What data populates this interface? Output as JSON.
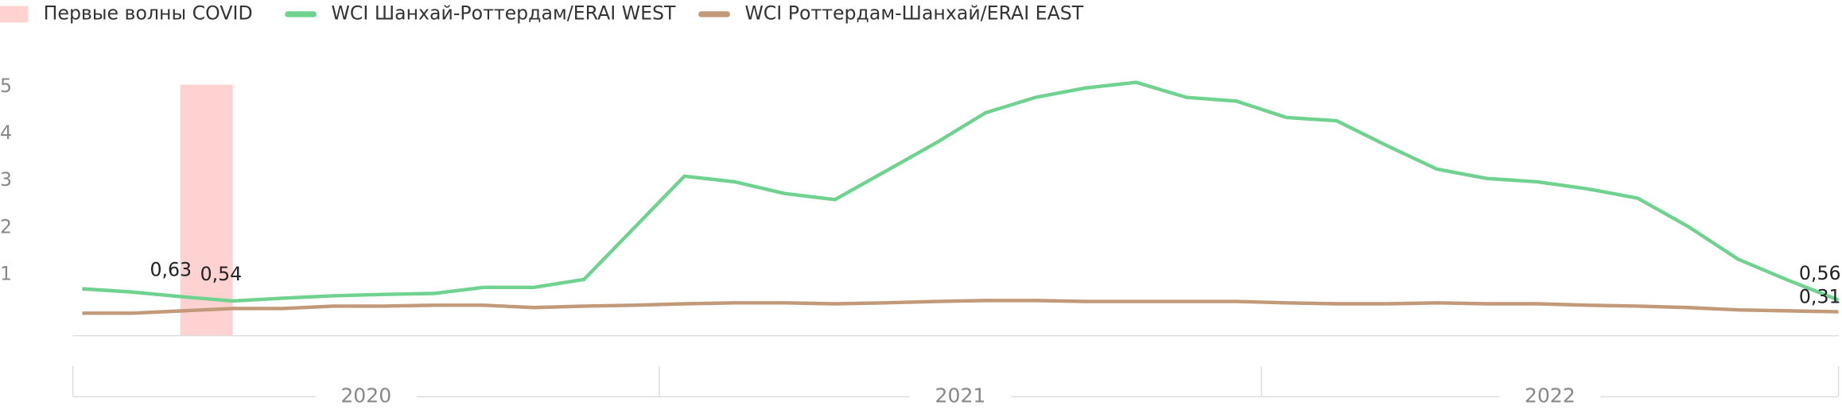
{
  "chart_data": {
    "type": "line",
    "categories": [
      null,
      null,
      null,
      null,
      null,
      null,
      null,
      null,
      null,
      null,
      null,
      null,
      null,
      null,
      null,
      null,
      null,
      null,
      null,
      null,
      null,
      null,
      null,
      null,
      null,
      null,
      null,
      null,
      null,
      null,
      null,
      null,
      null,
      null,
      null,
      null
    ],
    "year_groups": [
      "2020",
      "2021",
      "2022"
    ],
    "shaded_range": {
      "name": "Первые волны COVID",
      "color": "#ffd2d2",
      "from": 2,
      "to": 3
    },
    "series": [
      {
        "name": "WCI Шанхай-Роттердам/ERAI WEST",
        "color": "#6fd38f",
        "values": [
          0.8,
          0.73,
          0.63,
          0.54,
          0.6,
          0.65,
          0.68,
          0.7,
          0.83,
          0.83,
          1.0,
          2.1,
          3.2,
          3.08,
          2.83,
          2.7,
          3.3,
          3.9,
          4.55,
          4.88,
          5.08,
          5.2,
          4.88,
          4.8,
          4.45,
          4.38,
          3.85,
          3.35,
          3.15,
          3.08,
          2.93,
          2.73,
          2.13,
          1.43,
          0.98,
          0.56
        ],
        "value_labels": [
          null,
          null,
          "0,63",
          "0,54",
          null,
          null,
          null,
          null,
          null,
          null,
          null,
          null,
          null,
          null,
          null,
          null,
          null,
          null,
          null,
          null,
          null,
          null,
          null,
          null,
          null,
          null,
          null,
          null,
          null,
          null,
          null,
          null,
          null,
          null,
          null,
          "0,56"
        ]
      },
      {
        "name": "WCI Роттердам-Шанхай/ERAI EAST",
        "color": "#c29a7a",
        "values": [
          0.28,
          0.28,
          0.33,
          0.38,
          0.38,
          0.43,
          0.43,
          0.45,
          0.45,
          0.4,
          0.43,
          0.45,
          0.48,
          0.5,
          0.5,
          0.48,
          0.5,
          0.53,
          0.55,
          0.55,
          0.53,
          0.53,
          0.53,
          0.53,
          0.5,
          0.48,
          0.48,
          0.5,
          0.48,
          0.48,
          0.45,
          0.43,
          0.4,
          0.35,
          0.33,
          0.31
        ],
        "value_labels": [
          null,
          null,
          null,
          null,
          null,
          null,
          null,
          null,
          null,
          null,
          null,
          null,
          null,
          null,
          null,
          null,
          null,
          null,
          null,
          null,
          null,
          null,
          null,
          null,
          null,
          null,
          null,
          null,
          null,
          null,
          null,
          null,
          null,
          null,
          null,
          "0,31"
        ]
      }
    ],
    "ylim": [
      -0.2,
      5.3
    ],
    "yticks": [
      1,
      2,
      3,
      4,
      5
    ],
    "grid": false
  }
}
